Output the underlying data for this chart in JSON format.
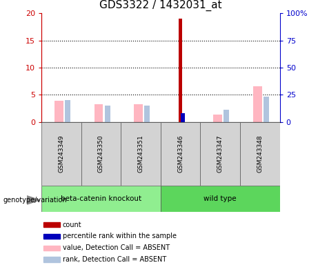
{
  "title": "GDS3322 / 1432031_at",
  "samples": [
    "GSM243349",
    "GSM243350",
    "GSM243351",
    "GSM243346",
    "GSM243347",
    "GSM243348"
  ],
  "groups": {
    "beta-catenin knockout": [
      0,
      1,
      2
    ],
    "wild type": [
      3,
      4,
      5
    ]
  },
  "group_colors": {
    "beta-catenin knockout": "#90EE90",
    "wild type": "#5CD65C"
  },
  "count_values": [
    0.0,
    0.0,
    0.0,
    19.0,
    0.0,
    0.0
  ],
  "percentile_rank_values": [
    null,
    null,
    null,
    8.2,
    null,
    null
  ],
  "absent_value_values": [
    3.9,
    3.25,
    3.25,
    null,
    1.3,
    6.5
  ],
  "absent_rank_values": [
    4.0,
    3.0,
    3.0,
    null,
    2.2,
    4.7
  ],
  "ylim_left": [
    0,
    20
  ],
  "ylim_right": [
    0,
    100
  ],
  "yticks_left": [
    0,
    5,
    10,
    15,
    20
  ],
  "yticks_right": [
    0,
    25,
    50,
    75,
    100
  ],
  "ytick_labels_right": [
    "0",
    "25",
    "50",
    "75",
    "100%"
  ],
  "left_axis_color": "#CC0000",
  "right_axis_color": "#0000CC",
  "count_color": "#BB0000",
  "percentile_color": "#0000BB",
  "absent_value_color": "#FFB6C1",
  "absent_rank_color": "#B0C4DE",
  "legend_labels": [
    "count",
    "percentile rank within the sample",
    "value, Detection Call = ABSENT",
    "rank, Detection Call = ABSENT"
  ],
  "legend_colors": [
    "#BB0000",
    "#0000BB",
    "#FFB6C1",
    "#B0C4DE"
  ],
  "bg_color": "#ffffff",
  "gray_box_color": "#D3D3D3",
  "title_fontsize": 11
}
